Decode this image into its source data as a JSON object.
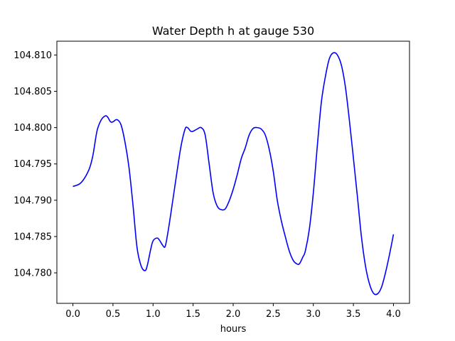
{
  "chart_data": {
    "type": "line",
    "title": "Water Depth h at gauge 530",
    "xlabel": "hours",
    "ylabel": "",
    "xlim": [
      -0.2,
      4.2
    ],
    "ylim": [
      104.7758,
      104.8119
    ],
    "xticks": [
      0.0,
      0.5,
      1.0,
      1.5,
      2.0,
      2.5,
      3.0,
      3.5,
      4.0
    ],
    "xtick_labels": [
      "0.0",
      "0.5",
      "1.0",
      "1.5",
      "2.0",
      "2.5",
      "3.0",
      "3.5",
      "4.0"
    ],
    "yticks": [
      104.78,
      104.785,
      104.79,
      104.795,
      104.8,
      104.805,
      104.81
    ],
    "ytick_labels": [
      "104.780",
      "104.785",
      "104.790",
      "104.795",
      "104.800",
      "104.805",
      "104.810"
    ],
    "grid": false,
    "series": [
      {
        "color": "#0000ff",
        "x": [
          0.0,
          0.1,
          0.2,
          0.25,
          0.3,
          0.35,
          0.4,
          0.43,
          0.47,
          0.5,
          0.55,
          0.6,
          0.65,
          0.7,
          0.75,
          0.8,
          0.85,
          0.9,
          0.93,
          0.97,
          1.0,
          1.05,
          1.08,
          1.12,
          1.15,
          1.18,
          1.22,
          1.3,
          1.35,
          1.4,
          1.43,
          1.47,
          1.5,
          1.55,
          1.6,
          1.65,
          1.7,
          1.75,
          1.8,
          1.85,
          1.9,
          1.95,
          2.0,
          2.05,
          2.1,
          2.15,
          2.2,
          2.25,
          2.3,
          2.35,
          2.4,
          2.45,
          2.5,
          2.55,
          2.6,
          2.65,
          2.7,
          2.75,
          2.8,
          2.83,
          2.87,
          2.9,
          2.95,
          3.0,
          3.05,
          3.1,
          3.15,
          3.2,
          3.25,
          3.3,
          3.35,
          3.4,
          3.45,
          3.5,
          3.55,
          3.6,
          3.65,
          3.7,
          3.75,
          3.8,
          3.85,
          3.9,
          3.95,
          4.0
        ],
        "y": [
          104.7919,
          104.7924,
          104.7942,
          104.7962,
          104.7995,
          104.801,
          104.8016,
          104.8015,
          104.8008,
          104.8008,
          104.8011,
          104.8004,
          104.798,
          104.7945,
          104.7893,
          104.7835,
          104.781,
          104.7803,
          104.7811,
          104.7832,
          104.7844,
          104.7848,
          104.7845,
          104.7838,
          104.7836,
          104.7852,
          104.788,
          104.794,
          104.7975,
          104.7998,
          104.8,
          104.7995,
          104.7995,
          104.7998,
          104.8,
          104.799,
          104.795,
          104.791,
          104.7892,
          104.7887,
          104.7888,
          104.7899,
          104.7915,
          104.7935,
          104.7957,
          104.7972,
          104.799,
          104.7999,
          104.8,
          104.7998,
          104.799,
          104.797,
          104.794,
          104.79,
          104.7872,
          104.785,
          104.783,
          104.7817,
          104.7812,
          104.7813,
          104.7822,
          104.783,
          104.786,
          104.791,
          104.7975,
          104.8035,
          104.807,
          104.8095,
          104.8103,
          104.81,
          104.8086,
          104.8056,
          104.801,
          104.7958,
          104.7905,
          104.785,
          104.781,
          104.7785,
          104.7772,
          104.7771,
          104.778,
          104.78,
          104.7825,
          104.7853
        ]
      }
    ]
  }
}
